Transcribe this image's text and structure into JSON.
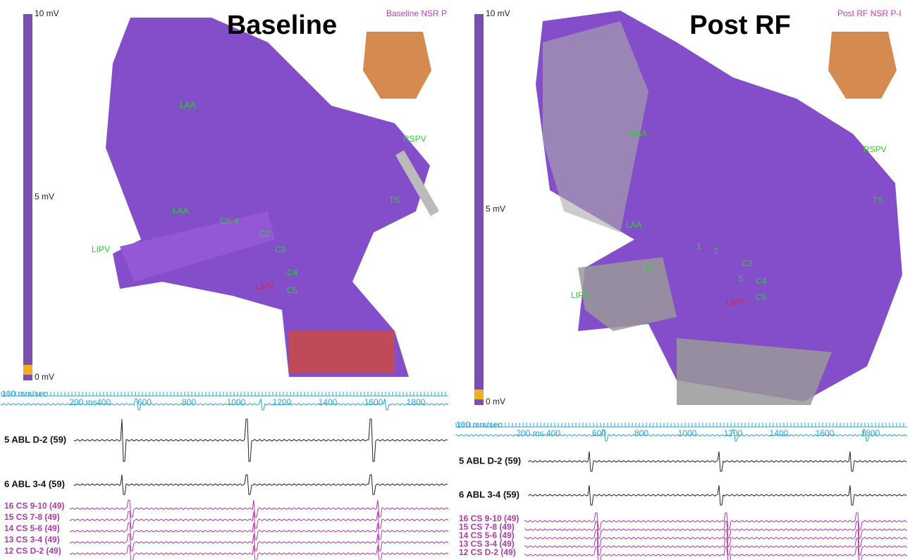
{
  "panels": [
    {
      "title": "Baseline",
      "map_name": "Baseline NSR P",
      "scale": {
        "top": "10 mV",
        "mid": "5 mV",
        "bottom": "0 mV"
      },
      "anatomy_labels": [
        "LAA",
        "LAA",
        "RSPV",
        "TS",
        "LIPV",
        "LIPV",
        "C2",
        "C3",
        "C4",
        "C5",
        "CS 4"
      ],
      "speed": "100 mm/sec",
      "time_ticks": [
        "200 ms",
        "400",
        "600",
        "800",
        "1000",
        "1200",
        "1400",
        "1600",
        "1800"
      ],
      "channels": [
        "5 ABL D-2 (59)",
        "6 ABL 3-4 (59)"
      ],
      "cs_channels": [
        "16 CS 9-10 (49)",
        "15 CS 7-8 (49)",
        "14 CS 5-6 (49)",
        "13 CS 3-4 (49)",
        "12 CS D-2 (49)"
      ]
    },
    {
      "title": "Post RF",
      "map_name": "Post RF NSR P-I",
      "scale": {
        "top": "10 mV",
        "mid": "5 mV",
        "bottom": "0 mV"
      },
      "anatomy_labels": [
        "LAA",
        "LAA",
        "RSPV",
        "TS",
        "LIPV",
        "LIPV",
        "C3",
        "C4",
        "C5",
        "17",
        "1",
        "2",
        "5"
      ],
      "speed": "100 mm/sec",
      "time_ticks": [
        "200 ms",
        "400",
        "600",
        "800",
        "1000",
        "1200",
        "1400",
        "1600",
        "1800"
      ],
      "channels": [
        "5 ABL D-2 (59)",
        "6 ABL 3-4 (59)"
      ],
      "cs_channels": [
        "16 CS 9-10 (49)",
        "15 CS 7-8 (49)",
        "14 CS 5-6 (49)",
        "13 CS 3-4 (49)",
        "12 CS D-2 (49)"
      ]
    }
  ]
}
